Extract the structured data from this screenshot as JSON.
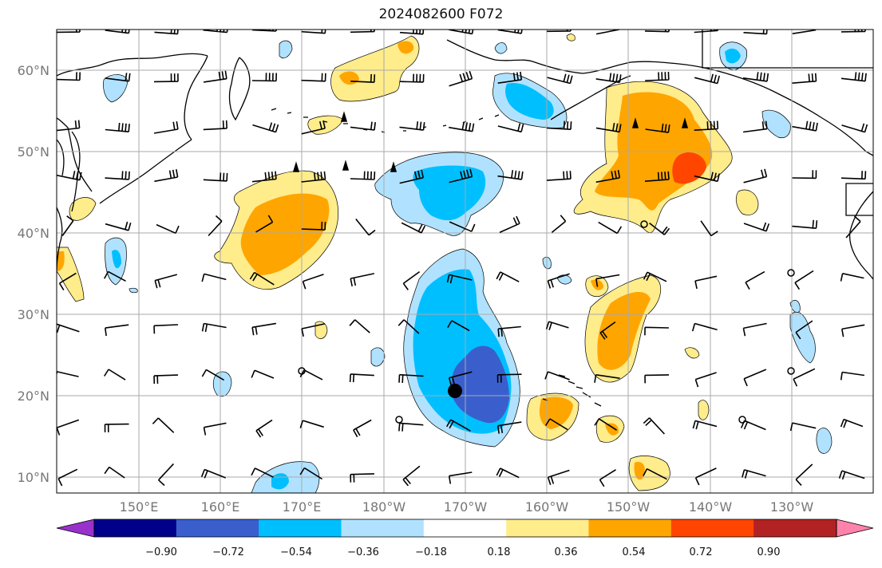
{
  "title": "2024082600 F072",
  "latitude_labels": [
    "60°N",
    "50°N",
    "40°N",
    "30°N",
    "20°N",
    "10°N"
  ],
  "longitude_labels": [
    "150°E",
    "160°E",
    "170°E",
    "180°W",
    "170°W",
    "160°W",
    "150°W",
    "140°W",
    "130°W"
  ],
  "colorbar": {
    "tick_labels": [
      "−0.90",
      "−0.72",
      "−0.54",
      "−0.36",
      "−0.18",
      "0.18",
      "0.36",
      "0.54",
      "0.72",
      "0.90"
    ],
    "colors": [
      "#9932CC",
      "#00008B",
      "#3A5FCD",
      "#00BFFF",
      "#B0E2FF",
      "#FFFFFF",
      "#FFEC8B",
      "#FFA500",
      "#FF4500",
      "#B22222",
      "#FF82AB"
    ]
  },
  "colors": {
    "grid": "#aaaaaa",
    "coast": "#000000",
    "barb": "#000000"
  }
}
